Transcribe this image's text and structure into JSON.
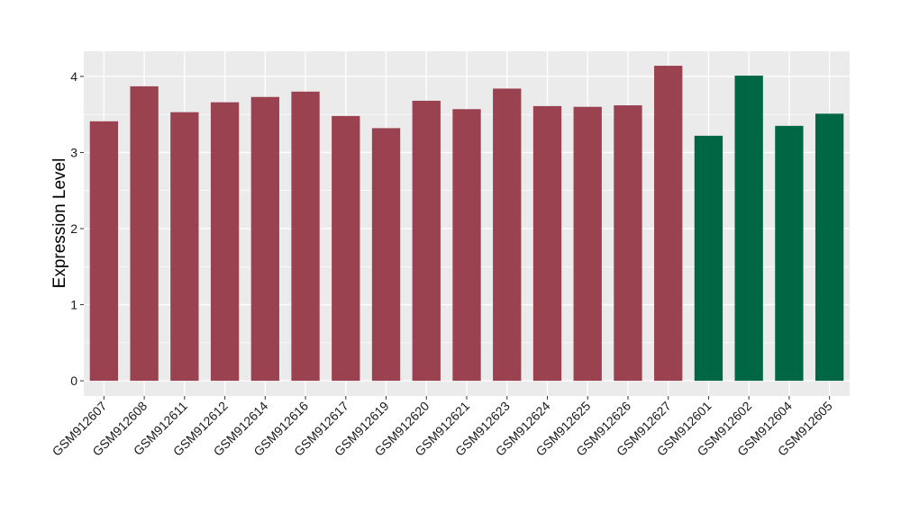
{
  "chart_data": {
    "type": "bar",
    "title": "",
    "xlabel": "",
    "ylabel": "Expression Level",
    "ylim": [
      -0.2,
      4.33
    ],
    "yticks": [
      0,
      1,
      2,
      3,
      4
    ],
    "grid": true,
    "categories": [
      "GSM912607",
      "GSM912608",
      "GSM912611",
      "GSM912612",
      "GSM912614",
      "GSM912616",
      "GSM912617",
      "GSM912619",
      "GSM912620",
      "GSM912621",
      "GSM912623",
      "GSM912624",
      "GSM912625",
      "GSM912626",
      "GSM912627",
      "GSM912601",
      "GSM912602",
      "GSM912604",
      "GSM912605"
    ],
    "values": [
      3.41,
      3.87,
      3.53,
      3.66,
      3.73,
      3.8,
      3.48,
      3.32,
      3.68,
      3.57,
      3.84,
      3.61,
      3.6,
      3.62,
      4.14,
      3.22,
      4.01,
      3.35,
      3.51
    ],
    "groups": [
      "a",
      "a",
      "a",
      "a",
      "a",
      "a",
      "a",
      "a",
      "a",
      "a",
      "a",
      "a",
      "a",
      "a",
      "a",
      "b",
      "b",
      "b",
      "b"
    ],
    "group_colors": {
      "a": "#9b4250",
      "b": "#006745"
    },
    "panel_color": "#ebebeb",
    "grid_color": "#ffffff"
  }
}
